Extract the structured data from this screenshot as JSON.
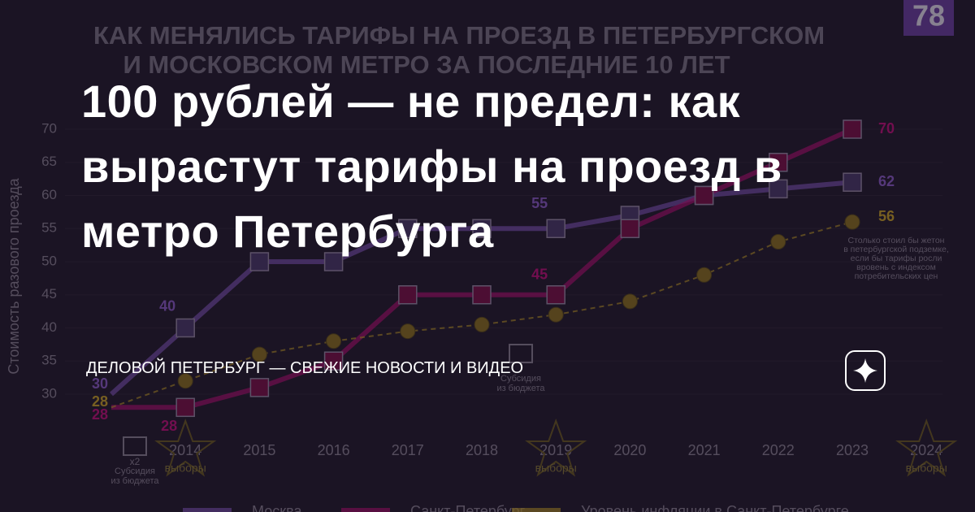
{
  "badge": "78",
  "background_chart": {
    "type": "line",
    "title": [
      "КАК МЕНЯЛИСЬ ТАРИФЫ НА ПРОЕЗД В ПЕТЕРБУРГСКОМ",
      "И МОСКОВСКОМ МЕТРО ЗА ПОСЛЕДНИЕ 10 ЛЕТ"
    ],
    "y_label": "Стоимость разового проезда",
    "categories": [
      null,
      "2014",
      "2015",
      "2016",
      "2017",
      "2018",
      "2019",
      "2020",
      "2021",
      "2022",
      "2023",
      "2024"
    ],
    "category_notes": [
      null,
      "выборы",
      null,
      null,
      null,
      null,
      "выборы",
      null,
      null,
      null,
      null,
      "выборы"
    ],
    "ylim": [
      26,
      71
    ],
    "yticks": [
      30,
      35,
      40,
      45,
      50,
      55,
      60,
      65,
      70
    ],
    "series": [
      {
        "name": "Москва",
        "color": "#8a5cc9",
        "values": [
          30,
          40,
          50,
          50,
          55,
          55,
          55,
          57,
          60,
          61,
          62,
          null
        ]
      },
      {
        "name": "Санкт-Петербург",
        "color": "#c0107a",
        "values": [
          28,
          28,
          31,
          35,
          45,
          45,
          45,
          55,
          60,
          65,
          70,
          null
        ]
      },
      {
        "name": "Уровень инфляции в Санкт-Петербурге",
        "color": "#c8a227",
        "values": [
          28,
          32,
          36,
          38,
          39.5,
          40.5,
          42,
          44,
          48,
          53,
          56,
          null
        ]
      }
    ],
    "annotation": [
      "Столько стоил бы жетон",
      "в петербургской подземке,",
      "если бы тарифы росли",
      "вровень с индексом",
      "потребительских цен"
    ],
    "subsidy_label": [
      "Субсидия",
      "из бюджета"
    ],
    "subsidy_factor": "x2"
  },
  "headline": [
    "100 рублей — не предел: как",
    "вырастут тарифы на проезд в",
    "метро Петербурга"
  ],
  "source": "ДЕЛОВОЙ ПЕТЕРБУРГ — СВЕЖИЕ НОВОСТИ И ВИДЕО"
}
